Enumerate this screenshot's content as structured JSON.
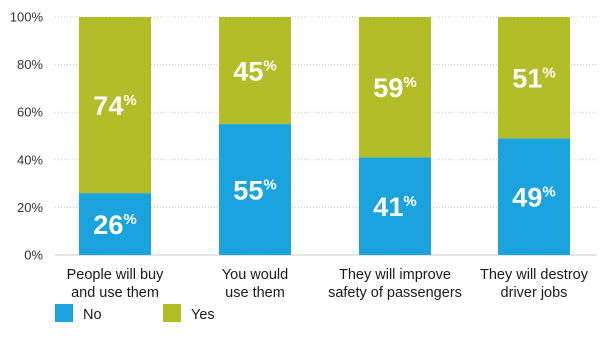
{
  "chart_data": {
    "type": "bar",
    "stacked": true,
    "categories": [
      [
        "People will buy",
        "and use them"
      ],
      [
        "You would",
        "use them"
      ],
      [
        "They will improve",
        "safety of passengers"
      ],
      [
        "They will destroy",
        "driver jobs"
      ]
    ],
    "series": [
      {
        "name": "No",
        "color": "#1aa3dc",
        "values": [
          26,
          55,
          41,
          49
        ]
      },
      {
        "name": "Yes",
        "color": "#b2bd27",
        "values": [
          74,
          45,
          59,
          51
        ]
      }
    ],
    "value_suffix": "%",
    "ylim": [
      0,
      100
    ],
    "yticks": [
      0,
      20,
      40,
      60,
      80,
      100
    ],
    "ytick_labels": [
      "0%",
      "20%",
      "40%",
      "60%",
      "80%",
      "100%"
    ],
    "grid": true,
    "legend": "bottom-left"
  }
}
